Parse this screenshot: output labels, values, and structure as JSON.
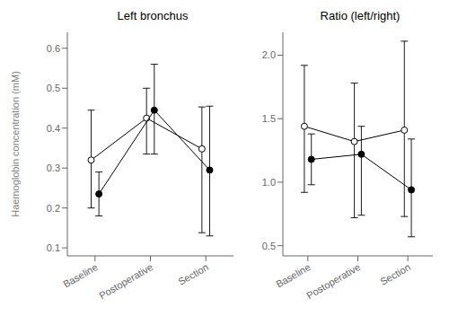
{
  "chart_data": [
    {
      "type": "line",
      "title": "Left bronchus",
      "ylabel": "Haemoglobin concentration (mM)",
      "categories": [
        "Baseline",
        "Postoperative",
        "Section"
      ],
      "series": [
        {
          "color": "#000000",
          "marker": "open_circle",
          "values": [
            0.32,
            0.425,
            0.348
          ],
          "errors_low": [
            0.12,
            0.09,
            0.21
          ],
          "errors_high": [
            0.125,
            0.075,
            0.105
          ]
        },
        {
          "color": "#000000",
          "marker": "circle",
          "values": [
            0.235,
            0.445,
            0.295
          ],
          "errors_low": [
            0.055,
            0.11,
            0.165
          ],
          "errors_high": [
            0.055,
            0.115,
            0.16
          ]
        }
      ],
      "ylim": [
        0.08,
        0.64
      ],
      "yticks": [
        0.1,
        0.2,
        0.3,
        0.4,
        0.5,
        0.6
      ]
    },
    {
      "type": "line",
      "title": "Ratio (left/right)",
      "categories": [
        "Baseline",
        "Postoperative",
        "Section"
      ],
      "series": [
        {
          "color": "#000000",
          "marker": "open_circle",
          "values": [
            1.44,
            1.32,
            1.41
          ],
          "errors_low": [
            0.52,
            0.6,
            0.68
          ],
          "errors_high": [
            0.48,
            0.46,
            0.7
          ]
        },
        {
          "color": "#000000",
          "marker": "circle",
          "values": [
            1.18,
            1.22,
            0.94
          ],
          "errors_low": [
            0.2,
            0.48,
            0.37
          ],
          "errors_high": [
            0.2,
            0.22,
            0.4
          ]
        }
      ],
      "ylim": [
        0.42,
        2.18
      ],
      "yticks": [
        0.5,
        {
          "value": 1,
          "label": "1.0"
        },
        1.5,
        {
          "value": 2,
          "label": "2.0"
        }
      ]
    }
  ]
}
